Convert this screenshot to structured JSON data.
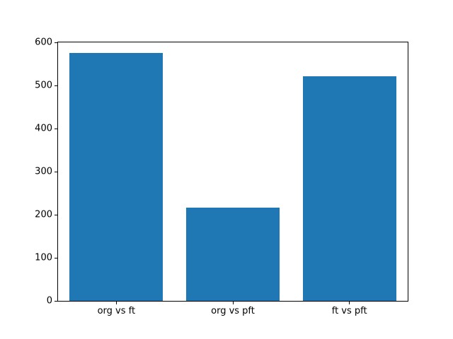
{
  "chart_data": {
    "type": "bar",
    "categories": [
      "org vs ft",
      "org vs pft",
      "ft vs pft"
    ],
    "values": [
      575,
      216,
      522
    ],
    "title": "",
    "xlabel": "",
    "ylabel": "",
    "ylim": [
      0,
      600
    ],
    "yticks": [
      0,
      100,
      200,
      300,
      400,
      500,
      600
    ],
    "bar_color": "#1f77b4",
    "bar_width_fraction": 0.8,
    "grid": false,
    "legend": null
  },
  "figure": {
    "background": "#ffffff",
    "axes_color": "#000000",
    "text_color": "#000000"
  }
}
